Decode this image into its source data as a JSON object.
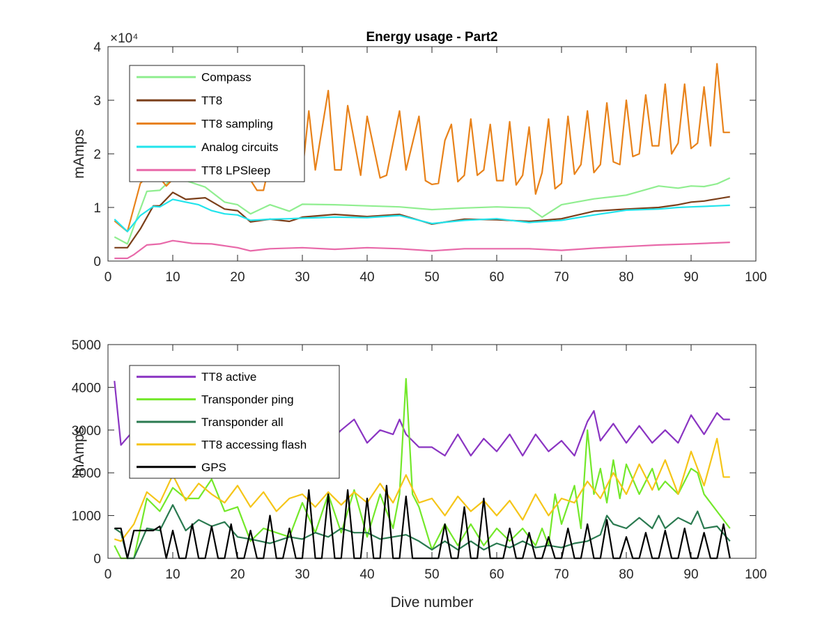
{
  "chart_data": [
    {
      "type": "line",
      "title": "Energy usage - Part2",
      "xlabel": "",
      "ylabel": "mAmps",
      "y_exponent_label": "×10⁴",
      "xlim": [
        0,
        100
      ],
      "ylim": [
        0,
        40000
      ],
      "xticks": [
        "0",
        "10",
        "20",
        "30",
        "40",
        "50",
        "60",
        "70",
        "80",
        "90",
        "100"
      ],
      "yticks": [
        "0",
        "1",
        "2",
        "3",
        "4"
      ],
      "legend_position": "top-left",
      "series": [
        {
          "name": "Compass",
          "color": "#90ee90",
          "x": [
            1,
            3,
            6,
            8,
            10,
            12,
            15,
            18,
            20,
            22,
            25,
            28,
            30,
            35,
            40,
            45,
            50,
            55,
            60,
            65,
            67,
            70,
            75,
            80,
            85,
            88,
            90,
            92,
            94,
            96
          ],
          "y": [
            4500,
            3200,
            13000,
            13200,
            15500,
            15000,
            13800,
            11000,
            10500,
            8800,
            10500,
            9300,
            10600,
            10500,
            10300,
            10100,
            9600,
            9900,
            10100,
            9900,
            8200,
            10500,
            11600,
            12300,
            14000,
            13600,
            14000,
            13900,
            14400,
            15500
          ]
        },
        {
          "name": "TT8",
          "color": "#7b3f1a",
          "x": [
            1,
            3,
            5,
            7,
            8,
            10,
            12,
            15,
            18,
            20,
            22,
            25,
            28,
            30,
            35,
            40,
            45,
            50,
            55,
            60,
            65,
            70,
            75,
            80,
            85,
            88,
            90,
            92,
            94,
            96
          ],
          "y": [
            2500,
            2500,
            6000,
            10300,
            10300,
            12800,
            11500,
            11800,
            9700,
            9400,
            7300,
            7800,
            7400,
            8200,
            8700,
            8300,
            8700,
            6900,
            7800,
            7700,
            7400,
            7900,
            9300,
            9700,
            10000,
            10500,
            11000,
            11200,
            11600,
            12000
          ]
        },
        {
          "name": "TT8 sampling",
          "color": "#e8821a",
          "x": [
            1,
            3,
            5,
            7,
            9,
            11,
            13,
            15,
            17,
            19,
            21,
            23,
            24,
            25,
            27,
            28,
            29,
            30,
            31,
            32,
            34,
            35,
            36,
            37,
            39,
            40,
            42,
            43,
            45,
            46,
            48,
            49,
            50,
            51,
            52,
            53,
            54,
            55,
            56,
            57,
            58,
            59,
            60,
            61,
            62,
            63,
            64,
            65,
            66,
            67,
            68,
            69,
            70,
            71,
            72,
            73,
            74,
            75,
            76,
            77,
            78,
            79,
            80,
            81,
            82,
            83,
            84,
            85,
            86,
            87,
            88,
            89,
            90,
            91,
            92,
            93,
            94,
            95,
            96
          ],
          "y": [
            7500,
            5500,
            14500,
            17000,
            14000,
            16500,
            15500,
            17000,
            16000,
            15000,
            17000,
            13200,
            13200,
            18500,
            28000,
            20000,
            16000,
            16500,
            28000,
            17000,
            31800,
            17000,
            17000,
            29000,
            16000,
            27000,
            15500,
            16000,
            28000,
            17000,
            27000,
            15000,
            14300,
            14500,
            22500,
            25500,
            14800,
            16000,
            26500,
            16000,
            17000,
            25500,
            15000,
            15000,
            26000,
            14200,
            16000,
            25000,
            12500,
            16500,
            26500,
            13500,
            14500,
            27000,
            16200,
            18000,
            28000,
            16500,
            18000,
            29500,
            18500,
            18000,
            30000,
            19500,
            20000,
            31000,
            21500,
            21500,
            33000,
            20000,
            22000,
            33000,
            21000,
            22000,
            32500,
            21500,
            36800,
            24000,
            24000
          ]
        },
        {
          "name": "Analog circuits",
          "color": "#22e4ec",
          "x": [
            1,
            3,
            5,
            7,
            8,
            10,
            12,
            14,
            16,
            18,
            20,
            22,
            25,
            28,
            30,
            35,
            40,
            45,
            50,
            55,
            60,
            65,
            70,
            75,
            80,
            85,
            88,
            90,
            92,
            94,
            96
          ],
          "y": [
            7800,
            5500,
            8500,
            10200,
            10100,
            11500,
            11000,
            10500,
            9400,
            8800,
            8600,
            7600,
            7800,
            7900,
            8000,
            8200,
            8100,
            8500,
            7000,
            7600,
            7900,
            7200,
            7600,
            8600,
            9500,
            9700,
            10000,
            10100,
            10200,
            10300,
            10400
          ]
        },
        {
          "name": "TT8 LPSleep",
          "color": "#e869a9",
          "x": [
            1,
            3,
            4,
            6,
            8,
            10,
            13,
            16,
            20,
            22,
            25,
            30,
            35,
            40,
            45,
            50,
            55,
            60,
            65,
            70,
            75,
            80,
            85,
            90,
            96
          ],
          "y": [
            500,
            500,
            1200,
            3000,
            3200,
            3800,
            3300,
            3200,
            2500,
            1900,
            2300,
            2500,
            2200,
            2500,
            2300,
            1900,
            2300,
            2300,
            2300,
            2000,
            2400,
            2700,
            3000,
            3200,
            3500
          ]
        }
      ]
    },
    {
      "type": "line",
      "title": "",
      "xlabel": "Dive number",
      "ylabel": "mAmps",
      "xlim": [
        0,
        100
      ],
      "ylim": [
        0,
        5000
      ],
      "xticks": [
        "0",
        "10",
        "20",
        "30",
        "40",
        "50",
        "60",
        "70",
        "80",
        "90",
        "100"
      ],
      "yticks": [
        "0",
        "1000",
        "2000",
        "3000",
        "4000",
        "5000"
      ],
      "legend_position": "top-left",
      "series": [
        {
          "name": "TT8 active",
          "color": "#8a34c2",
          "x": [
            1,
            2,
            4,
            6,
            8,
            10,
            12,
            14,
            16,
            18,
            20,
            22,
            24,
            26,
            28,
            30,
            32,
            34,
            36,
            38,
            40,
            42,
            44,
            45,
            46,
            48,
            50,
            52,
            54,
            56,
            58,
            60,
            62,
            64,
            66,
            68,
            70,
            72,
            74,
            75,
            76,
            78,
            80,
            82,
            84,
            86,
            88,
            90,
            92,
            94,
            95,
            96
          ],
          "y": [
            4150,
            2650,
            3000,
            2800,
            3050,
            2650,
            2900,
            2750,
            3000,
            2700,
            2900,
            2700,
            3000,
            2700,
            3000,
            2800,
            3000,
            2700,
            3000,
            3250,
            2700,
            3000,
            2900,
            3250,
            2900,
            2600,
            2600,
            2400,
            2900,
            2400,
            2800,
            2500,
            2900,
            2400,
            2900,
            2500,
            2750,
            2400,
            3200,
            3450,
            2750,
            3150,
            2700,
            3100,
            2700,
            3000,
            2700,
            3350,
            2900,
            3400,
            3250,
            3250
          ]
        },
        {
          "name": "Transponder ping",
          "color": "#73e82a",
          "x": [
            1,
            2,
            3,
            4,
            6,
            8,
            10,
            12,
            14,
            16,
            18,
            20,
            22,
            24,
            26,
            28,
            30,
            32,
            34,
            36,
            38,
            40,
            42,
            44,
            45,
            46,
            47,
            48,
            50,
            52,
            54,
            56,
            58,
            60,
            62,
            64,
            66,
            67,
            68,
            69,
            70,
            72,
            73,
            74,
            75,
            76,
            77,
            78,
            79,
            80,
            82,
            84,
            85,
            86,
            88,
            90,
            91,
            92,
            94,
            96
          ],
          "y": [
            300,
            0,
            0,
            0,
            1400,
            1100,
            1650,
            1400,
            1400,
            1850,
            1100,
            1200,
            400,
            700,
            600,
            500,
            1300,
            600,
            1500,
            600,
            1600,
            500,
            1500,
            700,
            1500,
            4200,
            1500,
            1200,
            200,
            800,
            300,
            800,
            300,
            700,
            400,
            700,
            300,
            700,
            300,
            1500,
            800,
            1700,
            700,
            3000,
            1500,
            2100,
            1300,
            2300,
            1400,
            2200,
            1500,
            2100,
            1600,
            1800,
            1500,
            2100,
            2000,
            1500,
            1100,
            700
          ]
        },
        {
          "name": "Transponder all",
          "color": "#2a7a50",
          "x": [
            1,
            2,
            3,
            4,
            6,
            8,
            10,
            12,
            14,
            16,
            18,
            20,
            22,
            25,
            28,
            30,
            32,
            34,
            36,
            38,
            40,
            42,
            44,
            46,
            48,
            50,
            52,
            54,
            56,
            58,
            60,
            62,
            64,
            66,
            68,
            70,
            72,
            74,
            76,
            77,
            78,
            80,
            82,
            84,
            85,
            86,
            88,
            90,
            91,
            92,
            94,
            96
          ],
          "y": [
            700,
            600,
            0,
            0,
            700,
            650,
            1250,
            650,
            900,
            750,
            850,
            500,
            450,
            350,
            500,
            450,
            600,
            500,
            700,
            600,
            600,
            450,
            500,
            550,
            400,
            200,
            400,
            200,
            400,
            200,
            350,
            250,
            400,
            250,
            300,
            250,
            350,
            400,
            550,
            1000,
            800,
            700,
            950,
            700,
            1000,
            700,
            950,
            800,
            1100,
            700,
            750,
            400
          ]
        },
        {
          "name": "TT8 accessing flash",
          "color": "#f5c518",
          "x": [
            1,
            2,
            4,
            6,
            8,
            10,
            12,
            14,
            16,
            18,
            20,
            22,
            24,
            26,
            28,
            30,
            32,
            34,
            36,
            38,
            40,
            42,
            44,
            46,
            48,
            50,
            52,
            54,
            56,
            58,
            60,
            62,
            64,
            66,
            68,
            70,
            72,
            74,
            76,
            78,
            80,
            82,
            84,
            86,
            88,
            90,
            92,
            94,
            95,
            96
          ],
          "y": [
            450,
            400,
            800,
            1550,
            1300,
            1950,
            1350,
            1750,
            1500,
            1300,
            1700,
            1200,
            1550,
            1100,
            1400,
            1500,
            1200,
            1550,
            1250,
            1550,
            1300,
            1750,
            1300,
            1950,
            1300,
            1400,
            1000,
            1450,
            1100,
            1350,
            1000,
            1350,
            900,
            1500,
            1000,
            1400,
            1300,
            1800,
            1400,
            2000,
            1500,
            2200,
            1600,
            2300,
            1500,
            2500,
            1700,
            2800,
            1900,
            1900
          ]
        },
        {
          "name": "GPS",
          "color": "#000000",
          "x": [
            1,
            2,
            3,
            4,
            5,
            6,
            7,
            8,
            9,
            10,
            11,
            12,
            13,
            14,
            15,
            16,
            17,
            18,
            19,
            20,
            21,
            22,
            23,
            24,
            25,
            26,
            27,
            28,
            29,
            30,
            31,
            32,
            33,
            34,
            35,
            36,
            37,
            38,
            39,
            40,
            41,
            42,
            43,
            44,
            45,
            46,
            47,
            48,
            49,
            50,
            51,
            52,
            53,
            54,
            55,
            56,
            57,
            58,
            59,
            60,
            61,
            62,
            63,
            64,
            65,
            66,
            67,
            68,
            69,
            70,
            71,
            72,
            73,
            74,
            75,
            76,
            77,
            78,
            79,
            80,
            81,
            82,
            83,
            84,
            85,
            86,
            87,
            88,
            89,
            90,
            91,
            92,
            93,
            94,
            95,
            96
          ],
          "y": [
            700,
            700,
            0,
            650,
            650,
            650,
            650,
            750,
            0,
            650,
            0,
            0,
            800,
            0,
            0,
            750,
            0,
            0,
            800,
            0,
            0,
            650,
            0,
            0,
            1000,
            0,
            0,
            700,
            0,
            0,
            1600,
            0,
            0,
            1500,
            0,
            0,
            1600,
            0,
            0,
            1400,
            0,
            0,
            1700,
            0,
            0,
            1450,
            0,
            0,
            0,
            0,
            0,
            800,
            0,
            0,
            1200,
            0,
            0,
            1400,
            0,
            0,
            0,
            700,
            0,
            0,
            600,
            0,
            0,
            500,
            0,
            0,
            700,
            0,
            0,
            800,
            0,
            0,
            900,
            0,
            0,
            500,
            0,
            0,
            600,
            0,
            0,
            650,
            0,
            0,
            700,
            0,
            0,
            600,
            0,
            0,
            800,
            0
          ]
        }
      ]
    }
  ]
}
